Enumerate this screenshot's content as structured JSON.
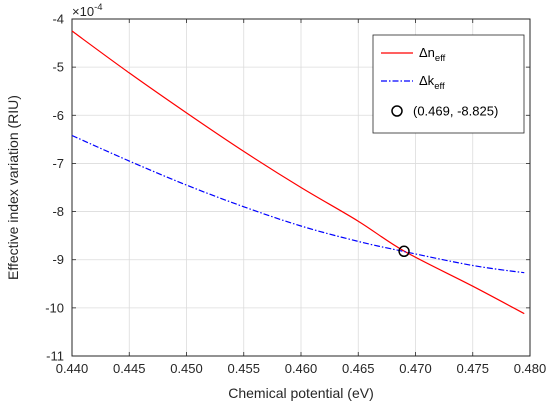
{
  "chart_data": {
    "type": "line",
    "title": "",
    "xlabel": "Chemical potential (eV)",
    "ylabel": "Effective index variation (RIU)",
    "y_exponent_label": "×10",
    "y_exponent_power": "-4",
    "xlim": [
      0.44,
      0.48
    ],
    "ylim": [
      -11,
      -4
    ],
    "xticks": [
      "0.440",
      "0.445",
      "0.450",
      "0.455",
      "0.460",
      "0.465",
      "0.470",
      "0.475",
      "0.480"
    ],
    "yticks": [
      "-4",
      "-5",
      "-6",
      "-7",
      "-8",
      "-9",
      "-10",
      "-11"
    ],
    "grid": true,
    "legend_position": "top-right",
    "series": [
      {
        "name": "Δn",
        "name_sub": "eff",
        "color": "#ff0000",
        "style": "solid",
        "x": [
          0.44,
          0.445,
          0.45,
          0.455,
          0.46,
          0.465,
          0.469,
          0.475,
          0.4795
        ],
        "y": [
          -4.25,
          -5.12,
          -5.95,
          -6.75,
          -7.5,
          -8.2,
          -8.82,
          -9.55,
          -10.12
        ]
      },
      {
        "name": "Δk",
        "name_sub": "eff",
        "color": "#0000ff",
        "style": "dashdot",
        "x": [
          0.44,
          0.445,
          0.45,
          0.455,
          0.46,
          0.465,
          0.469,
          0.475,
          0.4795
        ],
        "y": [
          -6.42,
          -6.95,
          -7.45,
          -7.9,
          -8.3,
          -8.62,
          -8.83,
          -9.12,
          -9.27
        ]
      }
    ],
    "annotation": {
      "label": "(0.469, -8.825)",
      "x": 0.469,
      "y": -8.825,
      "marker": "circle"
    }
  }
}
